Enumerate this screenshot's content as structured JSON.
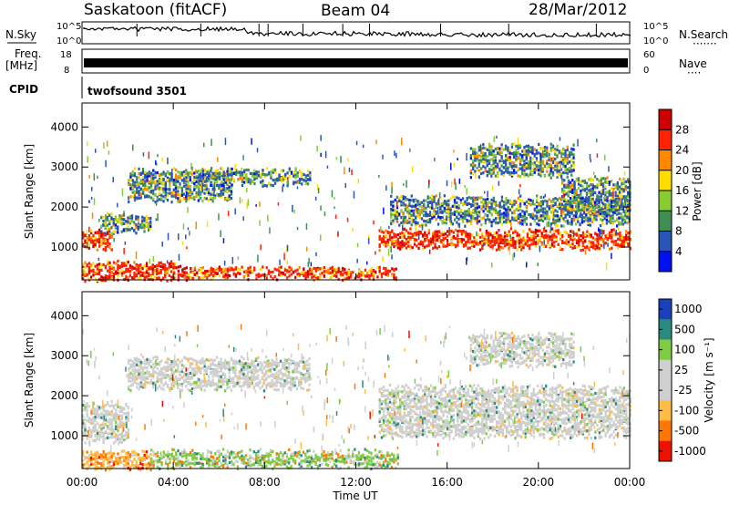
{
  "header": {
    "station": "Saskatoon (fitACF)",
    "beam": "Beam 04",
    "date": "28/Mar/2012"
  },
  "strip_labels": {
    "nsky": "N.Sky",
    "freq": "Freq.",
    "freq_unit": "[MHz]",
    "cpid": "CPID",
    "nsearch": "N.Search",
    "nsearch_dots": "·······",
    "nave": "Nave",
    "nave_dots": "····",
    "cpid_value": "twofsound 3501"
  },
  "strip_ticks": {
    "nsky_left": [
      "10^5",
      "10^0"
    ],
    "nsky_right": [
      "10^5",
      "10^0"
    ],
    "freq_left": [
      "18",
      "8"
    ],
    "freq_right": [
      "60",
      "0"
    ]
  },
  "chart_data": [
    {
      "type": "heatmap",
      "name": "power",
      "xlabel": "",
      "ylabel": "Slant Range [km]",
      "xlim": [
        0,
        24
      ],
      "ylim": [
        180,
        4600
      ],
      "yticks": [
        1000,
        2000,
        3000,
        4000
      ],
      "colorbar": {
        "label": "Power [dB]",
        "range": [
          0,
          32
        ],
        "ticks": [
          "4",
          "8",
          "12",
          "16",
          "20",
          "24",
          "28"
        ],
        "colors": [
          "#0011ee",
          "#2a55b8",
          "#3f8f55",
          "#88cc33",
          "#ffdd00",
          "#ff8800",
          "#ff2200",
          "#cc0000"
        ]
      },
      "echo_bands": [
        {
          "t": [
            0,
            4.0
          ],
          "r": [
            200,
            600
          ],
          "level": "high"
        },
        {
          "t": [
            4.0,
            13.8
          ],
          "r": [
            250,
            450
          ],
          "level": "high"
        },
        {
          "t": [
            0,
            1.3
          ],
          "r": [
            1000,
            1400
          ],
          "level": "high"
        },
        {
          "t": [
            0.8,
            3.0
          ],
          "r": [
            1400,
            1800
          ],
          "level": "medium"
        },
        {
          "t": [
            2.0,
            6.5
          ],
          "r": [
            2200,
            2900
          ],
          "level": "medium"
        },
        {
          "t": [
            5.0,
            10.0
          ],
          "r": [
            2600,
            2900
          ],
          "level": "medium"
        },
        {
          "t": [
            13.0,
            24.0
          ],
          "r": [
            1000,
            1400
          ],
          "level": "high"
        },
        {
          "t": [
            13.5,
            24.0
          ],
          "r": [
            1600,
            2200
          ],
          "level": "medium"
        },
        {
          "t": [
            17.0,
            21.5
          ],
          "r": [
            2800,
            3500
          ],
          "level": "medium"
        },
        {
          "t": [
            21.0,
            24.0
          ],
          "r": [
            1900,
            2700
          ],
          "level": "medium"
        }
      ]
    },
    {
      "type": "heatmap",
      "name": "velocity",
      "xlabel": "Time UT",
      "ylabel": "Slant Range [km]",
      "xlim": [
        0,
        24
      ],
      "ylim": [
        180,
        4600
      ],
      "xticks": [
        "00:00",
        "04:00",
        "08:00",
        "12:00",
        "16:00",
        "20:00",
        "00:00"
      ],
      "yticks": [
        1000,
        2000,
        3000,
        4000
      ],
      "colorbar": {
        "label": "Velocity [m s⁻¹]",
        "ticks": [
          "1000",
          "500",
          "100",
          "25",
          "-25",
          "-100",
          "-500",
          "-1000"
        ],
        "colors": [
          "#1a3fbf",
          "#2a8a80",
          "#7fcc44",
          "#cfcfcf",
          "#cfcfcf",
          "#ffbb44",
          "#ff7700",
          "#ee1100"
        ]
      },
      "echo_bands": [
        {
          "t": [
            0,
            3.0
          ],
          "r": [
            200,
            600
          ],
          "level": "negative"
        },
        {
          "t": [
            3.0,
            13.8
          ],
          "r": [
            250,
            600
          ],
          "level": "positive"
        },
        {
          "t": [
            0,
            2.0
          ],
          "r": [
            900,
            1800
          ],
          "level": "ground"
        },
        {
          "t": [
            2.0,
            10.0
          ],
          "r": [
            2200,
            2900
          ],
          "level": "ground"
        },
        {
          "t": [
            13.0,
            24.0
          ],
          "r": [
            1000,
            2200
          ],
          "level": "ground"
        },
        {
          "t": [
            17.0,
            21.5
          ],
          "r": [
            2800,
            3500
          ],
          "level": "ground"
        }
      ]
    }
  ]
}
